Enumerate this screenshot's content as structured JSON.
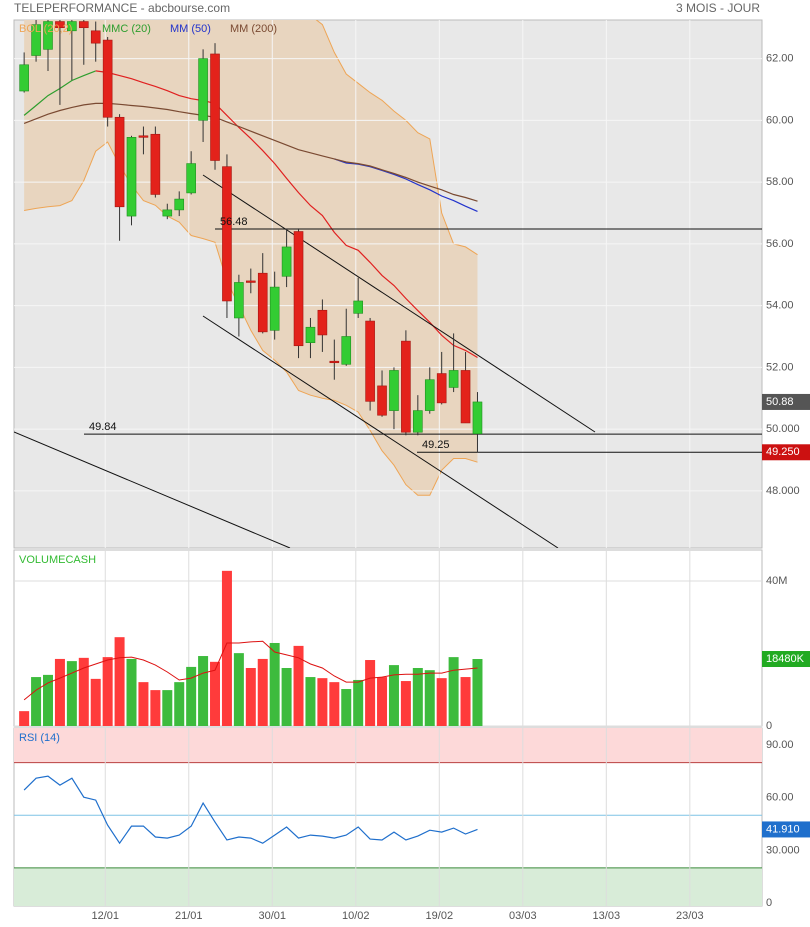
{
  "header": {
    "title": "TELEPERFORMANCE - abcbourse.com",
    "period": "3 MOIS - JOUR"
  },
  "chart_data": [
    {
      "type": "candlestick",
      "xlim": [
        -0.85,
        61.85
      ],
      "ylim": [
        46.15,
        63.25
      ],
      "yticks": [
        {
          "value": 48,
          "label": "48.000"
        },
        {
          "value": 50,
          "label": "50.000"
        },
        {
          "value": 52,
          "label": "52.00"
        },
        {
          "value": 54,
          "label": "54.00"
        },
        {
          "value": 56,
          "label": "56.00"
        },
        {
          "value": 58,
          "label": "58.00"
        },
        {
          "value": 60,
          "label": "60.00"
        },
        {
          "value": 62,
          "label": "62.00"
        }
      ],
      "grid": true,
      "up_color": "#33cc33",
      "down_color": "#e3221b",
      "open": [
        60.95,
        62.1,
        62.3,
        63.2,
        62.9,
        63.2,
        62.9,
        62.6,
        60.1,
        56.9,
        59.5,
        59.55,
        56.9,
        57.1,
        57.65,
        60.0,
        62.15,
        58.5,
        53.6,
        54.8,
        55.05,
        53.2,
        54.95,
        56.4,
        52.8,
        53.85,
        52.2,
        52.1,
        53.75,
        53.5,
        51.4,
        50.6,
        52.85,
        49.9,
        50.6,
        51.8,
        51.35,
        51.9,
        49.85
      ],
      "high": [
        62.2,
        63.5,
        63.5,
        63.5,
        63.5,
        63.5,
        63.2,
        62.7,
        60.2,
        59.5,
        59.8,
        59.8,
        57.3,
        57.7,
        59.0,
        62.3,
        62.5,
        58.9,
        55.0,
        55.2,
        55.7,
        55.1,
        56.5,
        56.5,
        53.6,
        54.2,
        52.9,
        53.9,
        54.9,
        53.6,
        51.9,
        52.0,
        53.2,
        51.1,
        52.0,
        52.5,
        53.1,
        52.5,
        51.2
      ],
      "low": [
        60.9,
        61.9,
        61.6,
        60.5,
        61.3,
        61.8,
        61.9,
        59.8,
        56.1,
        56.6,
        58.9,
        57.5,
        56.8,
        56.9,
        57.6,
        59.3,
        58.4,
        53.6,
        53.0,
        54.4,
        53.1,
        52.9,
        54.6,
        52.3,
        52.3,
        52.5,
        51.6,
        52.05,
        53.6,
        50.6,
        50.4,
        50.0,
        49.8,
        49.8,
        50.5,
        50.8,
        51.2,
        50.2,
        49.25
      ],
      "close": [
        61.8,
        63.1,
        63.2,
        63.0,
        63.2,
        63.0,
        62.5,
        60.1,
        57.2,
        59.45,
        59.45,
        57.6,
        57.1,
        57.45,
        58.6,
        62.0,
        58.7,
        54.15,
        54.75,
        54.75,
        53.15,
        54.6,
        55.9,
        52.7,
        53.3,
        53.05,
        52.15,
        53.0,
        54.15,
        50.9,
        50.45,
        51.9,
        49.9,
        50.6,
        51.6,
        50.85,
        51.9,
        50.2,
        50.88
      ],
      "bollinger": {
        "name": "BOL (20,2)",
        "color": "#eea555",
        "fill": "#e8d5bf",
        "upper": [
          66.0,
          66.0,
          66.0,
          66.0,
          66.0,
          66.0,
          65.8,
          65.6,
          65.6,
          65.5,
          65.5,
          65.4,
          65.3,
          65.2,
          65.0,
          64.9,
          64.8,
          64.7,
          64.6,
          64.5,
          64.3,
          64.1,
          63.9,
          63.7,
          63.4,
          63.1,
          62.2,
          61.5,
          61.2,
          60.9,
          60.65,
          60.3,
          60.0,
          59.6,
          59.4,
          57.0,
          56.0,
          55.9,
          55.65
        ],
        "lower": [
          57.08,
          57.15,
          57.2,
          57.24,
          57.4,
          58.05,
          59.0,
          59.3,
          58.55,
          57.9,
          57.4,
          57.25,
          56.9,
          56.7,
          56.27,
          56.17,
          56.05,
          54.8,
          54.0,
          53.2,
          52.55,
          52.23,
          51.85,
          51.25,
          51.1,
          51.0,
          50.93,
          50.77,
          50.55,
          49.96,
          49.3,
          48.83,
          48.2,
          47.86,
          47.86,
          48.67,
          49.05,
          49.05,
          48.93
        ]
      },
      "series": [
        {
          "name": "MMC (20)",
          "color": "#2e9e2e",
          "down_color": "#e02020",
          "values": [
            60.16,
            60.48,
            60.8,
            61.03,
            61.29,
            61.45,
            61.6,
            61.55,
            61.45,
            61.35,
            61.22,
            61.1,
            60.96,
            60.8,
            60.7,
            60.64,
            60.55,
            60.16,
            59.77,
            59.41,
            59.02,
            58.6,
            58.12,
            57.66,
            57.24,
            56.92,
            56.37,
            55.95,
            55.79,
            55.4,
            54.98,
            54.65,
            54.23,
            53.84,
            53.46,
            53.04,
            52.71,
            52.55,
            52.32
          ]
        },
        {
          "name": "MM (50)",
          "color": "#2233cc",
          "values": [
            null,
            null,
            null,
            null,
            null,
            null,
            null,
            null,
            null,
            null,
            null,
            null,
            null,
            null,
            null,
            null,
            null,
            null,
            null,
            null,
            null,
            null,
            null,
            null,
            null,
            null,
            58.75,
            58.62,
            58.58,
            58.5,
            58.38,
            58.25,
            58.1,
            57.92,
            57.75,
            57.55,
            57.4,
            57.22,
            57.05
          ]
        },
        {
          "name": "MM (200)",
          "color": "#7a4a32",
          "values": [
            59.9,
            60.05,
            60.2,
            60.32,
            60.42,
            60.5,
            60.55,
            60.55,
            60.52,
            60.48,
            60.45,
            60.4,
            60.35,
            60.28,
            60.22,
            60.16,
            60.1,
            59.95,
            59.8,
            59.65,
            59.5,
            59.35,
            59.2,
            59.05,
            58.95,
            58.85,
            58.75,
            58.65,
            58.6,
            58.52,
            58.4,
            58.28,
            58.15,
            58.0,
            57.87,
            57.75,
            57.6,
            57.5,
            57.38
          ]
        }
      ],
      "levels": [
        56.48,
        49.84,
        49.25
      ],
      "tags": [
        50.88,
        {
          "value": 49.25,
          "label": "49.250"
        }
      ],
      "tag_colors": [
        "#555555",
        "#cc1111"
      ]
    },
    {
      "type": "bar",
      "title": "VOLUMECASH",
      "title_color": "#33bb33",
      "ylim": [
        0,
        48.55
      ],
      "yticks": [
        0,
        {
          "value": 40,
          "label": "40M"
        }
      ],
      "values": [
        4.1,
        13.5,
        14.1,
        18.5,
        17.9,
        18.8,
        13.0,
        19.0,
        24.5,
        18.5,
        12.1,
        9.9,
        9.9,
        12.1,
        16.3,
        19.3,
        17.7,
        42.8,
        20.1,
        16.0,
        18.5,
        22.9,
        16.0,
        22.1,
        13.5,
        13.2,
        12.1,
        10.2,
        12.7,
        18.2,
        13.5,
        16.8,
        12.4,
        16.0,
        15.4,
        13.2,
        19.0,
        13.5,
        18.48
      ],
      "colors": [
        "#ff3b3b",
        "#3dbb3d",
        "#3dbb3d",
        "#ff3b3b",
        "#3dbb3d",
        "#ff3b3b",
        "#ff3b3b",
        "#ff3b3b",
        "#ff3b3b",
        "#3dbb3d",
        "#ff3b3b",
        "#ff3b3b",
        "#3dbb3d",
        "#3dbb3d",
        "#3dbb3d",
        "#3dbb3d",
        "#ff3b3b",
        "#ff3b3b",
        "#3dbb3d",
        "#ff3b3b",
        "#ff3b3b",
        "#3dbb3d",
        "#3dbb3d",
        "#ff3b3b",
        "#3dbb3d",
        "#ff3b3b",
        "#ff3b3b",
        "#3dbb3d",
        "#3dbb3d",
        "#ff3b3b",
        "#ff3b3b",
        "#3dbb3d",
        "#ff3b3b",
        "#3dbb3d",
        "#3dbb3d",
        "#ff3b3b",
        "#3dbb3d",
        "#ff3b3b",
        "#3dbb3d"
      ],
      "average": {
        "color": "#dd1111",
        "values": [
          7.2,
          9.9,
          11.9,
          13.2,
          14.6,
          16.0,
          17.1,
          18.2,
          18.8,
          19.0,
          18.2,
          16.8,
          14.9,
          12.7,
          13.2,
          14.6,
          15.4,
          22.9,
          22.9,
          23.2,
          23.4,
          20.4,
          19.6,
          18.8,
          17.1,
          16.0,
          13.8,
          12.1,
          12.1,
          13.2,
          13.5,
          14.1,
          14.3,
          14.3,
          14.6,
          14.6,
          15.4,
          15.7,
          16.0
        ]
      },
      "tag": {
        "value": 18.48,
        "label": "18480K"
      },
      "tag_color": "#22aa22"
    },
    {
      "type": "line",
      "title": "RSI (14)",
      "color": "#1f6fcc",
      "xticks": [
        {
          "value": 6.8,
          "label": "12/01"
        },
        {
          "value": 13.8,
          "label": "21/01"
        },
        {
          "value": 20.8,
          "label": "30/01"
        },
        {
          "value": 27.8,
          "label": "10/02"
        },
        {
          "value": 34.8,
          "label": "19/02"
        },
        {
          "value": 41.8,
          "label": "03/03"
        },
        {
          "value": 48.8,
          "label": "13/03"
        },
        {
          "value": 55.8,
          "label": "23/03"
        }
      ],
      "ylim": [
        -1.7,
        99.7
      ],
      "yticks": [
        0,
        {
          "value": 30,
          "label": "30.000"
        },
        {
          "value": 60,
          "label": "60.00"
        },
        {
          "value": 90,
          "label": "90.00"
        }
      ],
      "overbought": 80,
      "oversold": 20,
      "midline": 50,
      "values": [
        64.3,
        71.1,
        72.3,
        67.2,
        71.1,
        60.3,
        58.6,
        44.4,
        34.1,
        43.8,
        43.8,
        37.6,
        37.0,
        38.7,
        43.8,
        56.9,
        46.1,
        35.9,
        37.6,
        37.0,
        34.1,
        38.7,
        43.3,
        37.0,
        38.7,
        38.1,
        37.0,
        38.7,
        43.3,
        36.4,
        35.9,
        40.4,
        35.9,
        38.1,
        41.5,
        40.4,
        42.7,
        39.3,
        41.91
      ],
      "tag": {
        "value": 41.91,
        "label": "41.910"
      },
      "tag_color": "#1f6fcc"
    }
  ]
}
